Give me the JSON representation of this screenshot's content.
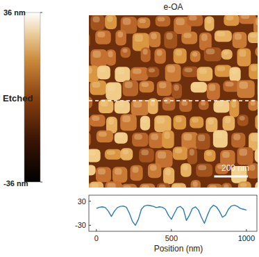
{
  "chart_data": [
    {
      "type": "image",
      "title": "e-OA",
      "label": "Etched",
      "xlim": [
        0,
        1000
      ],
      "colorbar_range": [
        -36,
        36
      ],
      "colorbar_ticks": [
        {
          "value": 36,
          "label": "36 nm"
        },
        {
          "value": -36,
          "label": "-36 nm"
        }
      ],
      "scale_bar": {
        "value": 200,
        "label": "200 nm"
      }
    },
    {
      "type": "line",
      "xlabel": "Position (nm)",
      "color": "#2a7ab8",
      "x": [
        0,
        20,
        40,
        60,
        80,
        100,
        120,
        140,
        160,
        180,
        200,
        220,
        240,
        260,
        280,
        300,
        320,
        340,
        360,
        380,
        400,
        420,
        440,
        460,
        480,
        500,
        520,
        540,
        560,
        580,
        600,
        620,
        640,
        660,
        680,
        700,
        720,
        740,
        760,
        780,
        800,
        820,
        840,
        860,
        880,
        900,
        920,
        940,
        960,
        980,
        1000
      ],
      "values": [
        12,
        15,
        16,
        14,
        5,
        -8,
        5,
        14,
        17,
        18,
        15,
        0,
        -20,
        -30,
        -15,
        10,
        18,
        20,
        19,
        17,
        14,
        16,
        15,
        10,
        -5,
        -15,
        0,
        14,
        17,
        10,
        -18,
        -5,
        12,
        16,
        8,
        -10,
        -25,
        -5,
        12,
        20,
        16,
        5,
        -10,
        -5,
        10,
        18,
        20,
        17,
        12,
        10,
        8
      ],
      "xlim": [
        -50,
        1070
      ],
      "ylim": [
        -45,
        45
      ],
      "xticks": [
        0,
        500,
        1000
      ],
      "yticks": [
        -30,
        30
      ]
    }
  ]
}
